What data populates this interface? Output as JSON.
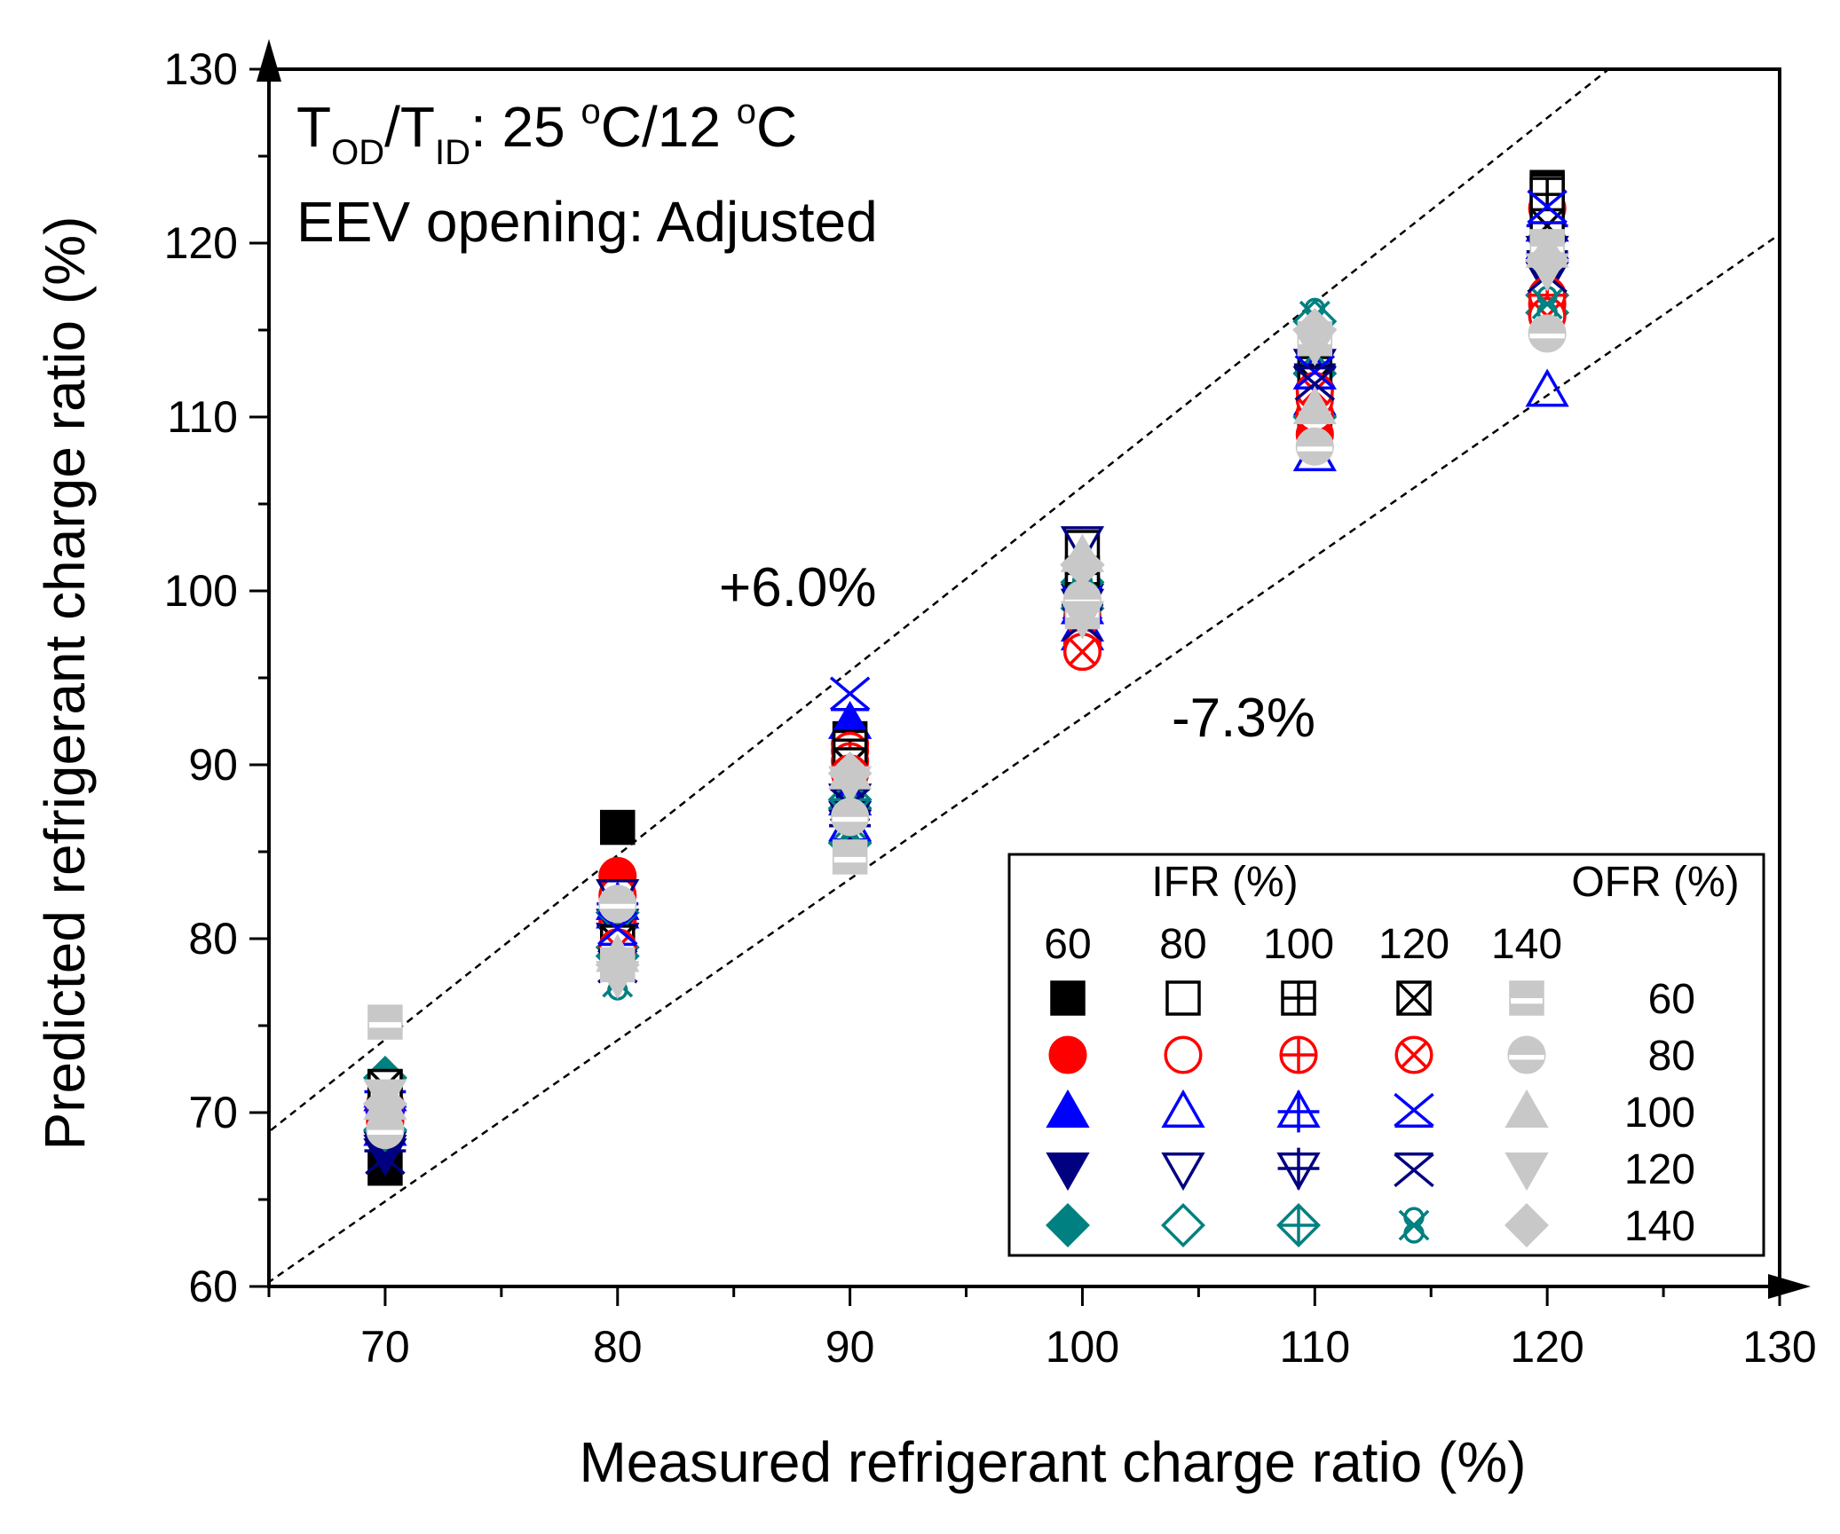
{
  "chart_data": {
    "type": "scatter",
    "title": "",
    "xlabel": "Measured refrigerant charge ratio (%)",
    "ylabel": "Predicted refrigerant charge ratio (%)",
    "xlim": [
      65,
      130
    ],
    "ylim": [
      60,
      130
    ],
    "xticks": [
      "70",
      "80",
      "90",
      "100",
      "110",
      "120",
      "130"
    ],
    "yticks": [
      "60",
      "70",
      "80",
      "90",
      "100",
      "110",
      "120",
      "130"
    ],
    "grid": false,
    "condition_line1": {
      "pre": "T",
      "sub1": "OD",
      "mid": "/T",
      "sub2": "ID",
      "value": ": 25 ",
      "sup1": "o",
      "unit1": "C/12 ",
      "sup2": "o",
      "unit2": "C"
    },
    "condition_line2": "EEV opening: Adjusted",
    "reference_lines": [
      {
        "label": "+6.0%",
        "slope": 1.06
      },
      {
        "label": "-7.3%",
        "slope": 0.927
      }
    ],
    "legend": {
      "ifr_header": "IFR (%)",
      "ofr_header": "OFR (%)",
      "ifr_values": [
        "60",
        "80",
        "100",
        "120",
        "140"
      ],
      "ofr_values": [
        "60",
        "80",
        "100",
        "120",
        "140"
      ],
      "placement": "bottom-right"
    },
    "marker_colors": {
      "60": "#000000",
      "80": "#ff0000",
      "100": "#0000ff",
      "120": "#000080",
      "140": "#008080",
      "ifr140": "#c8c8c8"
    },
    "series": [
      {
        "ifr": 60,
        "ofr": 60,
        "x": [
          70,
          80,
          90,
          100,
          110,
          120
        ],
        "y": [
          66.8,
          86.4,
          91.5,
          100.8,
          109.4,
          123.2
        ]
      },
      {
        "ifr": 60,
        "ofr": 80,
        "x": [
          70,
          80,
          90,
          100,
          110,
          120
        ],
        "y": [
          69.8,
          83.6,
          91.2,
          97.0,
          109.0,
          116.5
        ]
      },
      {
        "ifr": 60,
        "ofr": 100,
        "x": [
          70,
          80,
          90,
          100,
          110,
          120
        ],
        "y": [
          71.0,
          81.5,
          92.4,
          98.0,
          111.0,
          120.0
        ]
      },
      {
        "ifr": 60,
        "ofr": 120,
        "x": [
          70,
          80,
          90,
          100,
          110,
          120
        ],
        "y": [
          67.6,
          80.0,
          88.0,
          99.5,
          112.0,
          118.0
        ]
      },
      {
        "ifr": 60,
        "ofr": 140,
        "x": [
          70,
          80,
          90,
          100,
          110,
          120
        ],
        "y": [
          72.0,
          79.5,
          87.5,
          100.5,
          110.0,
          116.0
        ]
      },
      {
        "ifr": 80,
        "ofr": 60,
        "x": [
          70,
          80,
          90,
          100,
          110,
          120
        ],
        "y": [
          71.5,
          80.5,
          91.0,
          102.5,
          112.5,
          123.0
        ]
      },
      {
        "ifr": 80,
        "ofr": 80,
        "x": [
          70,
          80,
          90,
          100,
          110,
          120
        ],
        "y": [
          70.5,
          82.5,
          90.8,
          98.5,
          110.2,
          122.0
        ]
      },
      {
        "ifr": 80,
        "ofr": 100,
        "x": [
          70,
          80,
          90,
          100,
          110,
          120
        ],
        "y": [
          69.0,
          82.0,
          88.0,
          97.5,
          107.8,
          111.5
        ]
      },
      {
        "ifr": 80,
        "ofr": 120,
        "x": [
          70,
          80,
          90,
          100,
          110,
          120
        ],
        "y": [
          68.0,
          82.5,
          87.0,
          102.8,
          112.0,
          118.5
        ]
      },
      {
        "ifr": 80,
        "ofr": 140,
        "x": [
          70,
          80,
          90,
          100,
          110,
          120
        ],
        "y": [
          70.5,
          79.0,
          85.5,
          101.5,
          115.5,
          117.0
        ]
      },
      {
        "ifr": 100,
        "ofr": 60,
        "x": [
          70,
          80,
          90,
          100,
          110,
          120
        ],
        "y": [
          70.8,
          80.8,
          90.5,
          101.0,
          112.0,
          122.8
        ]
      },
      {
        "ifr": 100,
        "ofr": 80,
        "x": [
          70,
          80,
          90,
          100,
          110,
          120
        ],
        "y": [
          69.5,
          81.0,
          90.2,
          96.8,
          111.0,
          117.0
        ]
      },
      {
        "ifr": 100,
        "ofr": 100,
        "x": [
          70,
          80,
          90,
          100,
          110,
          120
        ],
        "y": [
          71.2,
          82.0,
          86.5,
          99.0,
          112.5,
          121.0
        ]
      },
      {
        "ifr": 100,
        "ofr": 120,
        "x": [
          70,
          80,
          90,
          100,
          110,
          120
        ],
        "y": [
          67.8,
          80.8,
          86.5,
          99.2,
          113.0,
          119.5
        ]
      },
      {
        "ifr": 100,
        "ofr": 140,
        "x": [
          70,
          80,
          90,
          100,
          110,
          120
        ],
        "y": [
          69.0,
          81.5,
          88.0,
          99.0,
          112.5,
          119.0
        ]
      },
      {
        "ifr": 120,
        "ofr": 60,
        "x": [
          70,
          80,
          90,
          100,
          110,
          120
        ],
        "y": [
          71.5,
          79.8,
          90.0,
          99.5,
          112.0,
          121.0
        ]
      },
      {
        "ifr": 120,
        "ofr": 80,
        "x": [
          70,
          80,
          90,
          100,
          110,
          120
        ],
        "y": [
          70.0,
          79.5,
          89.5,
          96.5,
          111.5,
          115.8
        ]
      },
      {
        "ifr": 120,
        "ofr": 100,
        "x": [
          70,
          80,
          90,
          100,
          110,
          120
        ],
        "y": [
          70.8,
          80.5,
          94.0,
          99.2,
          112.5,
          122.0
        ]
      },
      {
        "ifr": 120,
        "ofr": 120,
        "x": [
          70,
          80,
          90,
          100,
          110,
          120
        ],
        "y": [
          67.5,
          78.5,
          87.8,
          98.2,
          112.0,
          118.2
        ]
      },
      {
        "ifr": 120,
        "ofr": 140,
        "x": [
          70,
          80,
          90,
          100,
          110,
          120
        ],
        "y": [
          70.0,
          77.5,
          86.0,
          101.0,
          115.8,
          116.5
        ]
      },
      {
        "ifr": 140,
        "ofr": 60,
        "x": [
          70,
          80,
          90,
          100,
          110,
          120
        ],
        "y": [
          75.2,
          78.5,
          84.7,
          98.8,
          114.5,
          119.8
        ]
      },
      {
        "ifr": 140,
        "ofr": 80,
        "x": [
          70,
          80,
          90,
          100,
          110,
          120
        ],
        "y": [
          69.0,
          82.0,
          87.0,
          99.5,
          108.3,
          114.8
        ]
      },
      {
        "ifr": 140,
        "ofr": 100,
        "x": [
          70,
          80,
          90,
          100,
          110,
          120
        ],
        "y": [
          70.5,
          79.0,
          89.5,
          102.0,
          110.5,
          119.5
        ]
      },
      {
        "ifr": 140,
        "ofr": 120,
        "x": [
          70,
          80,
          90,
          100,
          110,
          120
        ],
        "y": [
          71.0,
          77.8,
          89.0,
          98.5,
          114.2,
          118.5
        ]
      },
      {
        "ifr": 140,
        "ofr": 140,
        "x": [
          70,
          80,
          90,
          100,
          110,
          120
        ],
        "y": [
          70.5,
          78.5,
          89.5,
          101.5,
          115.0,
          119.0
        ]
      }
    ]
  }
}
